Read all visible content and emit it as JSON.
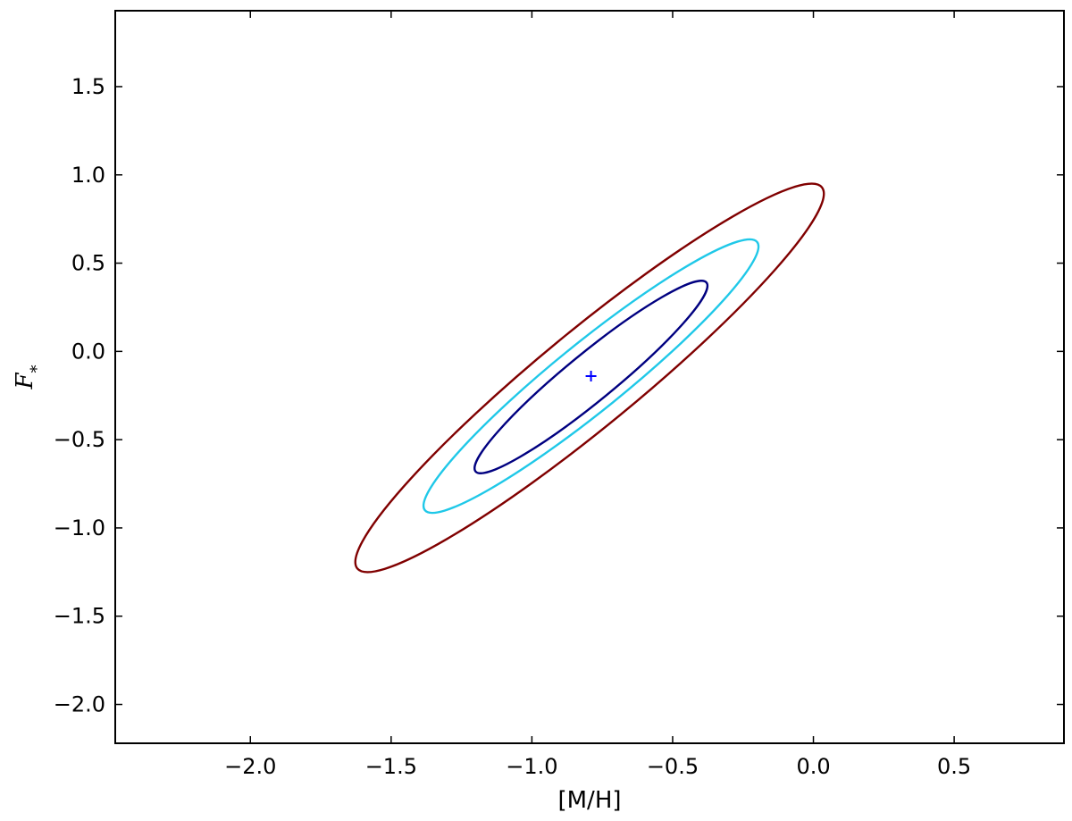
{
  "chart_data": {
    "type": "contour",
    "title": "",
    "xlabel": "[M/H]",
    "ylabel_main": "F",
    "ylabel_sub": "*",
    "xlim": [
      -2.48,
      0.89
    ],
    "ylim": [
      -2.22,
      1.93
    ],
    "x_ticks": [
      -2.0,
      -1.5,
      -1.0,
      -0.5,
      0.0,
      0.5
    ],
    "x_tick_labels": [
      "−2.0",
      "−1.5",
      "−1.0",
      "−0.5",
      "0.0",
      "0.5"
    ],
    "y_ticks": [
      -2.0,
      -1.5,
      -1.0,
      -0.5,
      0.0,
      0.5,
      1.0,
      1.5
    ],
    "y_tick_labels": [
      "−2.0",
      "−1.5",
      "−1.0",
      "−0.5",
      "0.0",
      "0.5",
      "1.0",
      "1.5"
    ],
    "grid": false,
    "best_fit": {
      "x": -0.79,
      "y": -0.14,
      "marker": "+",
      "color": "#0000ff"
    },
    "contours": [
      {
        "level": 1,
        "color": "#000080",
        "center": [
          -0.79,
          -0.14
        ],
        "extreme_points": [
          [
            -1.2,
            -0.68
          ],
          [
            -0.38,
            0.39
          ]
        ]
      },
      {
        "level": 2,
        "color": "#1fc8e8",
        "center": [
          -0.79,
          -0.14
        ],
        "extreme_points": [
          [
            -1.38,
            -0.9
          ],
          [
            -0.2,
            0.62
          ]
        ]
      },
      {
        "level": 3,
        "color": "#800000",
        "center": [
          -0.79,
          -0.14
        ],
        "extreme_points": [
          [
            -1.62,
            -1.23
          ],
          [
            0.03,
            0.93
          ]
        ]
      }
    ]
  }
}
